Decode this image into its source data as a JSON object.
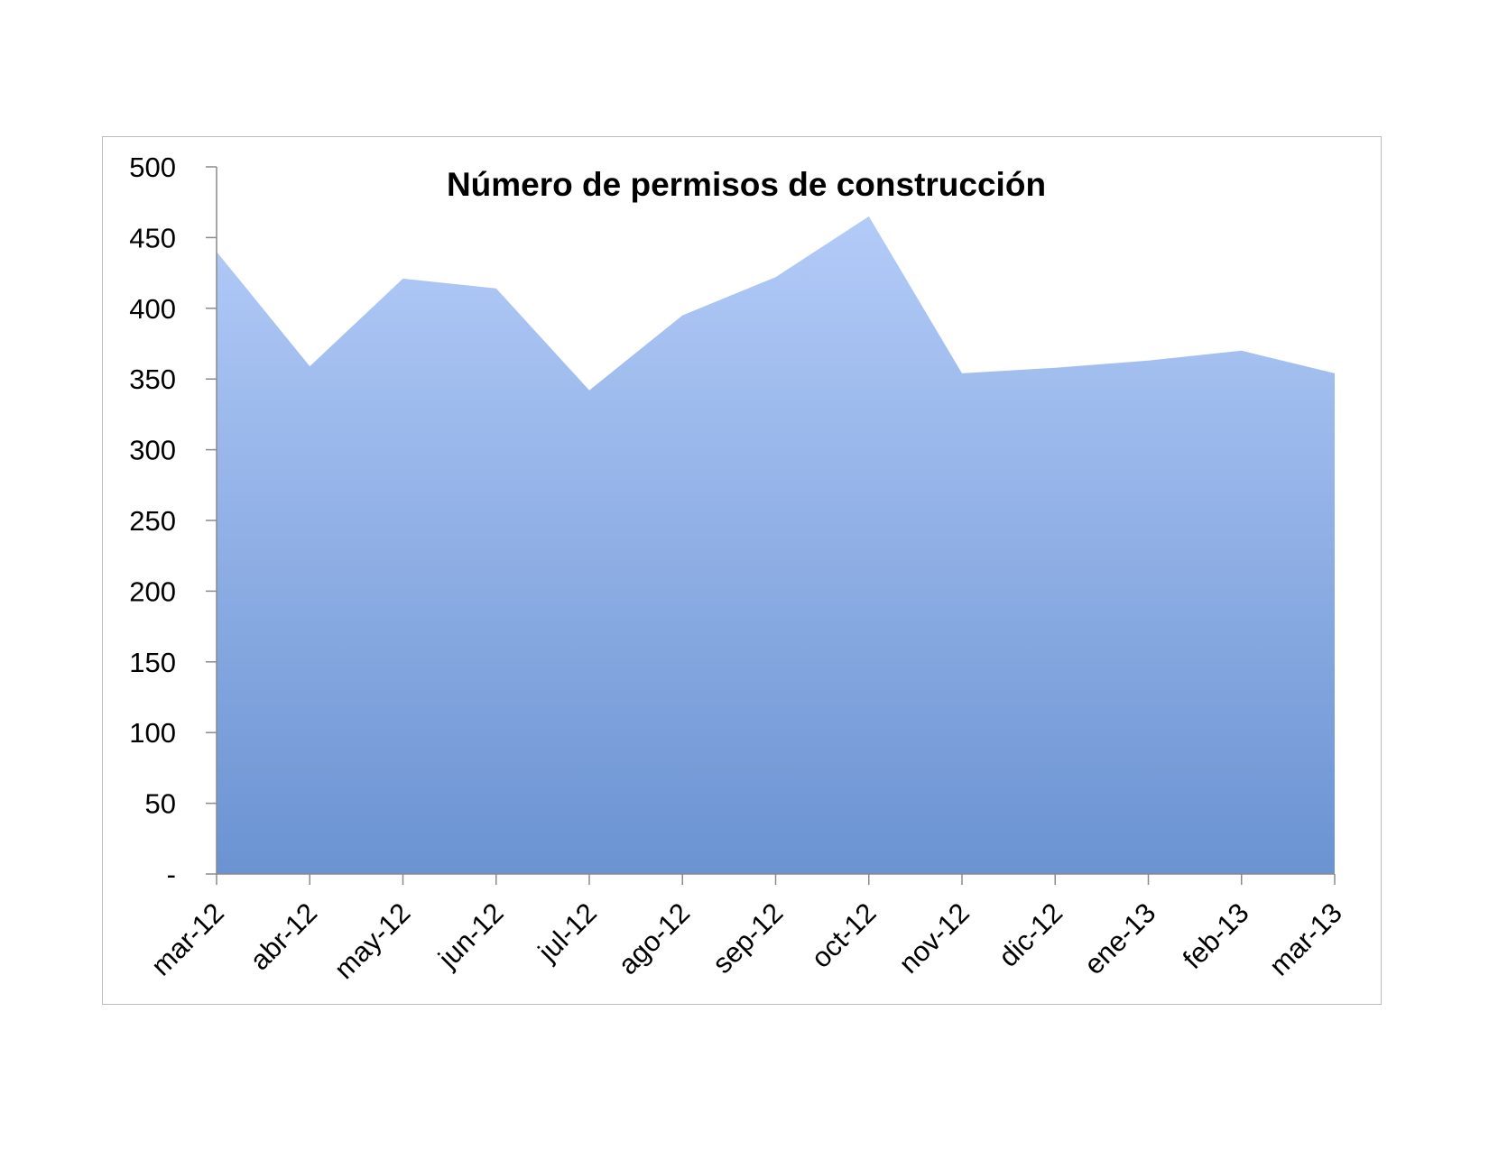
{
  "chart_data": {
    "type": "area",
    "title": "Número de permisos de construcción",
    "xlabel": "",
    "ylabel": "",
    "categories": [
      "mar-12",
      "abr-12",
      "may-12",
      "jun-12",
      "jul-12",
      "ago-12",
      "sep-12",
      "oct-12",
      "nov-12",
      "dic-12",
      "ene-13",
      "feb-13",
      "mar-13"
    ],
    "series": [
      {
        "values": [
          440,
          359,
          421,
          414,
          342,
          395,
          422,
          465,
          354,
          358,
          363,
          370,
          354
        ]
      }
    ],
    "ylim": [
      0,
      500
    ],
    "yticks": [
      0,
      50,
      100,
      150,
      200,
      250,
      300,
      350,
      400,
      450,
      500
    ],
    "ytick_labels": [
      "-",
      "50",
      "100",
      "150",
      "200",
      "250",
      "300",
      "350",
      "400",
      "450",
      "500"
    ],
    "grid": false,
    "legend": "none",
    "colors": {
      "fill_top": "#b3cbf8",
      "fill_bottom": "#6b93d2",
      "axis": "#8a8a8a",
      "frame": "#bdbdbd"
    }
  }
}
